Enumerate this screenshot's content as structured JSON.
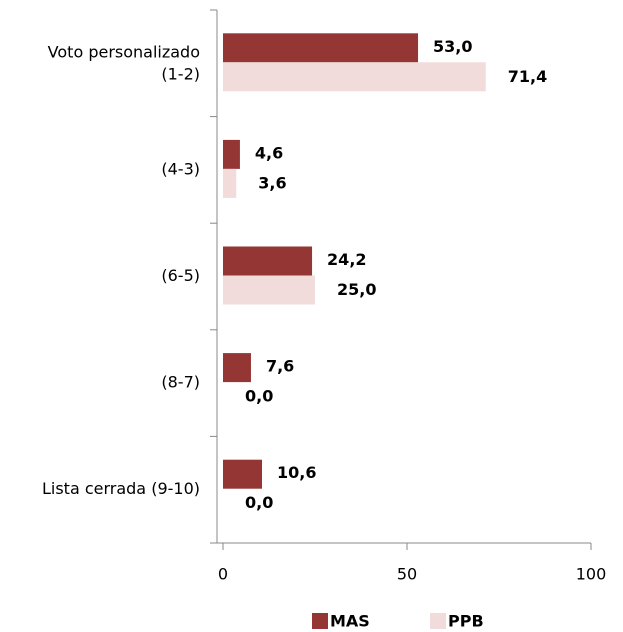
{
  "chart_data": {
    "type": "hbar",
    "categories": [
      "Voto personalizado\n(1-2)",
      "(4-3)",
      "(6-5)",
      "(8-7)",
      "Lista cerrada (9-10)"
    ],
    "series": [
      {
        "name": "MAS",
        "color": "#943634",
        "values": [
          53.0,
          4.6,
          24.2,
          7.6,
          10.6
        ],
        "value_labels": [
          "53,0",
          "4,6",
          "24,2",
          "7,6",
          "10,6"
        ]
      },
      {
        "name": "PPB",
        "color": "#f2dcdb",
        "values": [
          71.4,
          3.6,
          25.0,
          0.0,
          0.0
        ],
        "value_labels": [
          "71,4",
          "3,6",
          "25,0",
          "0,0",
          "0,0"
        ]
      }
    ],
    "xlim": [
      0,
      100
    ],
    "xticks": [
      0,
      50,
      100
    ],
    "legend": "bottom"
  }
}
